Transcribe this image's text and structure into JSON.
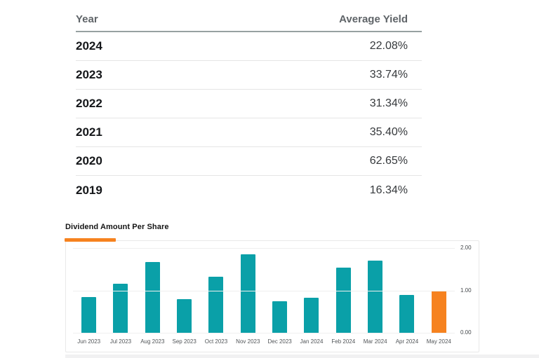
{
  "table": {
    "header_labels": {
      "year": "Year",
      "average_yield": "Average Yield"
    }
  },
  "chart": {
    "title": "Dividend Amount Per Share"
  },
  "colors": {
    "bar_teal": "#0aa0a8",
    "bar_highlight_orange": "#f6821f",
    "tab_indicator_orange": "#f6821f",
    "gridline": "#efefef",
    "card_border": "#e9e9e9"
  },
  "chart_data": [
    {
      "type": "table",
      "columns": [
        "Year",
        "Average Yield"
      ],
      "rows": [
        [
          "2024",
          "22.08%"
        ],
        [
          "2023",
          "33.74%"
        ],
        [
          "2022",
          "31.34%"
        ],
        [
          "2021",
          "35.40%"
        ],
        [
          "2020",
          "62.65%"
        ],
        [
          "2019",
          "16.34%"
        ]
      ]
    },
    {
      "type": "bar",
      "title": "Dividend Amount Per Share",
      "categories": [
        "Jun 2023",
        "Jul 2023",
        "Aug 2023",
        "Sep 2023",
        "Oct 2023",
        "Nov 2023",
        "Dec 2023",
        "Jan 2024",
        "Feb 2024",
        "Mar 2024",
        "Apr 2024",
        "May 2024"
      ],
      "values": [
        0.84,
        1.16,
        1.67,
        0.8,
        1.33,
        1.85,
        0.74,
        0.83,
        1.53,
        1.7,
        0.89,
        1.0
      ],
      "xlabel": "",
      "ylabel": "",
      "ylim": [
        0,
        2
      ],
      "yticks": [
        "2.00",
        "1.00",
        "0.00"
      ],
      "ytick_side": "right",
      "grid": true,
      "legend": false,
      "bar_color": "#0aa0a8",
      "highlight_color": "#f6821f",
      "highlight_index": 11
    }
  ]
}
